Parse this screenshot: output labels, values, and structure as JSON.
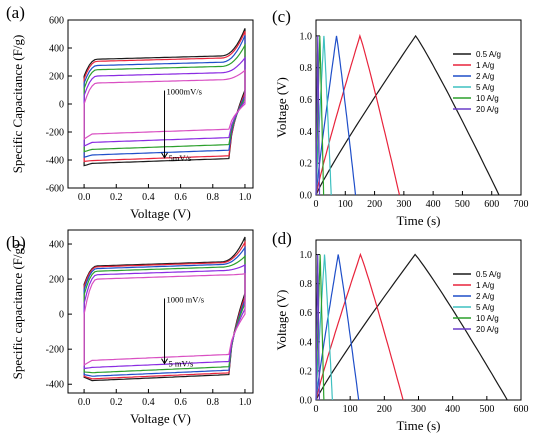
{
  "chart_data": [
    {
      "id": "a",
      "panel_label": "(a)",
      "type": "line",
      "xlabel": "Voltage (V)",
      "ylabel": "Specific Capacitance (F/g)",
      "xlim": [
        -0.1,
        1.05
      ],
      "ylim": [
        -600,
        600
      ],
      "xticks": [
        "0.0",
        "0.2",
        "0.4",
        "0.6",
        "0.8",
        "1.0"
      ],
      "xtick_values": [
        0,
        0.2,
        0.4,
        0.6,
        0.8,
        1.0
      ],
      "yticks": [
        "-600",
        "-400",
        "-200",
        "0",
        "200",
        "400",
        "600"
      ],
      "ytick_values": [
        -600,
        -400,
        -200,
        0,
        200,
        400,
        600
      ],
      "annotation_top": "1000mV/s",
      "annotation_bottom": "5mV/s",
      "colors": [
        "#1a1a1a",
        "#e8243c",
        "#1f4fc9",
        "#2ca02c",
        "#8a2be2",
        "#d94fc2"
      ],
      "cv_loops": [
        {
          "upper_mid": 320,
          "lower_mid": -390,
          "upper_start": 200,
          "lower_start": -440,
          "corner_up": 540,
          "corner_down": 100
        },
        {
          "upper_mid": 305,
          "lower_mid": -370,
          "upper_start": 180,
          "lower_start": -410,
          "corner_up": 520,
          "corner_down": 80
        },
        {
          "upper_mid": 275,
          "lower_mid": -330,
          "upper_start": 150,
          "lower_start": -380,
          "corner_up": 490,
          "corner_down": 60
        },
        {
          "upper_mid": 245,
          "lower_mid": -290,
          "upper_start": 110,
          "lower_start": -340,
          "corner_up": 420,
          "corner_down": 40
        },
        {
          "upper_mid": 200,
          "lower_mid": -240,
          "upper_start": 60,
          "lower_start": -300,
          "corner_up": 330,
          "corner_down": 20
        },
        {
          "upper_mid": 150,
          "lower_mid": -180,
          "upper_start": 0,
          "lower_start": -250,
          "corner_up": 240,
          "corner_down": 0
        }
      ]
    },
    {
      "id": "b",
      "panel_label": "(b)",
      "type": "line",
      "xlabel": "Voltage (V)",
      "ylabel": "Specific capacitance (F/g)",
      "xlim": [
        -0.1,
        1.05
      ],
      "ylim": [
        -450,
        480
      ],
      "xticks": [
        "0.0",
        "0.2",
        "0.4",
        "0.6",
        "0.8",
        "1.0"
      ],
      "xtick_values": [
        0,
        0.2,
        0.4,
        0.6,
        0.8,
        1.0
      ],
      "yticks": [
        "-400",
        "-200",
        "0",
        "200",
        "400"
      ],
      "ytick_values": [
        -400,
        -200,
        0,
        200,
        400
      ],
      "annotation_top": "1000 mV/s",
      "annotation_bottom": "5 mV/s",
      "colors": [
        "#1a1a1a",
        "#e8243c",
        "#1f4fc9",
        "#2ca02c",
        "#8a2be2",
        "#d94fc2"
      ],
      "cv_loops": [
        {
          "upper_mid": 275,
          "lower_mid": -345,
          "upper_start": 170,
          "lower_start": -360,
          "corner_up": 440,
          "corner_down": 120
        },
        {
          "upper_mid": 270,
          "lower_mid": -335,
          "upper_start": 160,
          "lower_start": -355,
          "corner_up": 410,
          "corner_down": 100
        },
        {
          "upper_mid": 260,
          "lower_mid": -320,
          "upper_start": 140,
          "lower_start": -345,
          "corner_up": 380,
          "corner_down": 80
        },
        {
          "upper_mid": 245,
          "lower_mid": -300,
          "upper_start": 110,
          "lower_start": -330,
          "corner_up": 330,
          "corner_down": 60
        },
        {
          "upper_mid": 225,
          "lower_mid": -270,
          "upper_start": 60,
          "lower_start": -310,
          "corner_up": 280,
          "corner_down": 30
        },
        {
          "upper_mid": 200,
          "lower_mid": -230,
          "upper_start": 0,
          "lower_start": -290,
          "corner_up": 230,
          "corner_down": 0
        }
      ]
    },
    {
      "id": "c",
      "panel_label": "(c)",
      "type": "line",
      "xlabel": "Time (s)",
      "ylabel": "Voltage (V)",
      "xlim": [
        0,
        700
      ],
      "ylim": [
        0,
        1.1
      ],
      "xticks": [
        "0",
        "100",
        "200",
        "300",
        "400",
        "500",
        "600",
        "700"
      ],
      "xtick_values": [
        0,
        100,
        200,
        300,
        400,
        500,
        600,
        700
      ],
      "yticks": [
        "0.0",
        "0.2",
        "0.4",
        "0.6",
        "0.8",
        "1.0"
      ],
      "ytick_values": [
        0,
        0.2,
        0.4,
        0.6,
        0.8,
        1.0
      ],
      "series": [
        {
          "name": "0.5 A/g",
          "color": "#1a1a1a",
          "peak_t": 340,
          "end_t": 625
        },
        {
          "name": "1 A/g",
          "color": "#e8243c",
          "peak_t": 150,
          "end_t": 285
        },
        {
          "name": "2 A/g",
          "color": "#1f4fc9",
          "peak_t": 70,
          "end_t": 135
        },
        {
          "name": "5 A/g",
          "color": "#3fc0c0",
          "peak_t": 27,
          "end_t": 52
        },
        {
          "name": "10 A/g",
          "color": "#2ca02c",
          "peak_t": 13,
          "end_t": 26
        },
        {
          "name": "20 A/g",
          "color": "#6a3dc8",
          "peak_t": 6,
          "end_t": 12
        }
      ]
    },
    {
      "id": "d",
      "panel_label": "(d)",
      "type": "line",
      "xlabel": "Time (s)",
      "ylabel": "Voltage (V)",
      "xlim": [
        0,
        600
      ],
      "ylim": [
        0,
        1.1
      ],
      "xticks": [
        "0",
        "100",
        "200",
        "300",
        "400",
        "500",
        "600"
      ],
      "xtick_values": [
        0,
        100,
        200,
        300,
        400,
        500,
        600
      ],
      "yticks": [
        "0.0",
        "0.2",
        "0.4",
        "0.6",
        "0.8",
        "1.0"
      ],
      "ytick_values": [
        0,
        0.2,
        0.4,
        0.6,
        0.8,
        1.0
      ],
      "series": [
        {
          "name": "0.5 A/g",
          "color": "#1a1a1a",
          "peak_t": 290,
          "end_t": 560
        },
        {
          "name": "1 A/g",
          "color": "#e8243c",
          "peak_t": 130,
          "end_t": 255
        },
        {
          "name": "2 A/g",
          "color": "#1f4fc9",
          "peak_t": 65,
          "end_t": 125
        },
        {
          "name": "5 A/g",
          "color": "#3fc0c0",
          "peak_t": 25,
          "end_t": 48
        },
        {
          "name": "10 A/g",
          "color": "#2ca02c",
          "peak_t": 12,
          "end_t": 23
        },
        {
          "name": "20 A/g",
          "color": "#6a3dc8",
          "peak_t": 5,
          "end_t": 10
        }
      ]
    }
  ]
}
